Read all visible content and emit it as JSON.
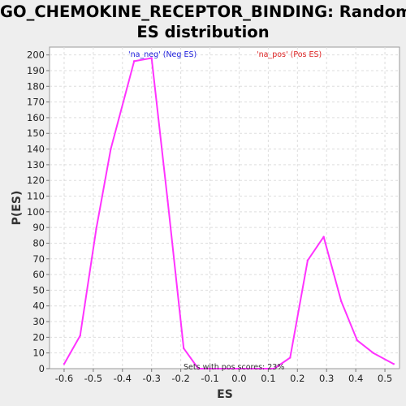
{
  "chart_data": {
    "type": "line",
    "title_line1": "GO_CHEMOKINE_RECEPTOR_BINDING: Random",
    "title_line2": "ES distribution",
    "xlabel": "ES",
    "ylabel": "P(ES)",
    "xlim": [
      -0.65,
      0.55
    ],
    "ylim": [
      0,
      205
    ],
    "xticks": [
      -0.6,
      -0.5,
      -0.4,
      -0.3,
      -0.2,
      -0.1,
      0.0,
      0.1,
      0.2,
      0.3,
      0.4,
      0.5
    ],
    "xtick_labels": [
      "-0.6",
      "-0.5",
      "-0.4",
      "-0.3",
      "-0.2",
      "-0.1",
      "0.0",
      "0.1",
      "0.2",
      "0.3",
      "0.4",
      "0.5"
    ],
    "yticks": [
      0,
      10,
      20,
      30,
      40,
      50,
      60,
      70,
      80,
      90,
      100,
      110,
      120,
      130,
      140,
      150,
      160,
      170,
      180,
      190,
      200
    ],
    "grid": true,
    "line_color": "#ff33ff",
    "series": [
      {
        "x": [
          -0.6,
          -0.545,
          -0.49,
          -0.44,
          -0.36,
          -0.3,
          -0.245,
          -0.19,
          -0.14,
          -0.1,
          0.12,
          0.175,
          0.235,
          0.29,
          0.35,
          0.405,
          0.46,
          0.53
        ],
        "y": [
          3,
          21,
          89,
          140,
          196,
          198,
          107,
          13,
          0,
          0,
          0,
          7,
          69,
          84,
          43,
          18,
          10,
          3
        ]
      }
    ],
    "legend": [
      {
        "text": "'na_neg' (Neg ES)",
        "color": "#2222dd"
      },
      {
        "text": "'na_pos' (Pos ES)",
        "color": "#dd2222"
      }
    ],
    "annotation": "Sets with pos scores: 23%"
  }
}
